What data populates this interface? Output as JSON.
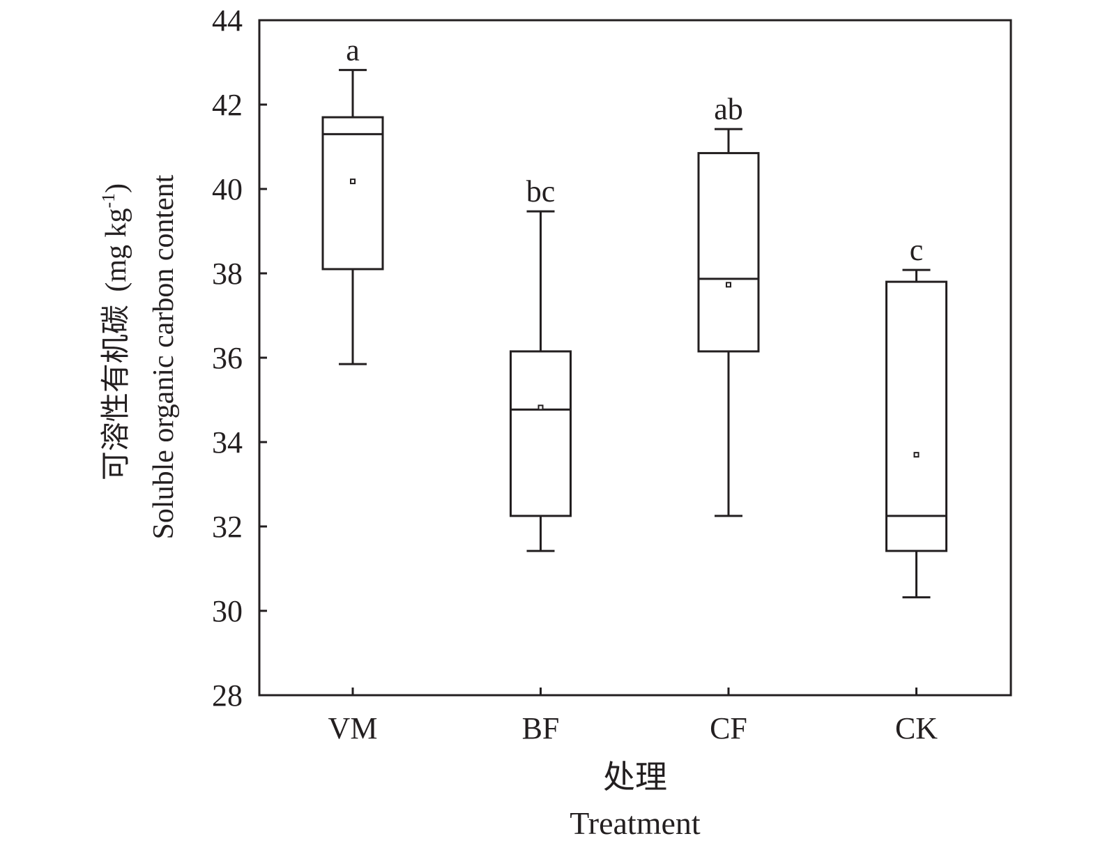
{
  "chart_data": {
    "type": "box",
    "ylabel_cn": "可溶性有机碳",
    "ylabel_en": "Soluble organic carbon content",
    "ylabel_unit": "(mg kg",
    "ylabel_unit_sup": "-1",
    "ylabel_unit_close": ")",
    "xlabel_cn": "处理",
    "xlabel_en": "Treatment",
    "ylim": [
      28,
      44
    ],
    "yticks": [
      28,
      30,
      32,
      34,
      36,
      38,
      40,
      42,
      44
    ],
    "ytick_labels": [
      "28",
      "30",
      "32",
      "34",
      "36",
      "38",
      "40",
      "42",
      "44"
    ],
    "grid": false,
    "categories": [
      "VM",
      "BF",
      "CF",
      "CK"
    ],
    "boxes": [
      {
        "label": "VM",
        "whisker_low": 35.85,
        "q1": 38.1,
        "median": 41.3,
        "q3": 41.7,
        "whisker_high": 42.82,
        "mean": 40.18,
        "letter": "a"
      },
      {
        "label": "BF",
        "whisker_low": 31.42,
        "q1": 32.25,
        "median": 34.77,
        "q3": 36.15,
        "whisker_high": 39.47,
        "mean": 34.82,
        "letter": "bc"
      },
      {
        "label": "CF",
        "whisker_low": 32.25,
        "q1": 36.15,
        "median": 37.87,
        "q3": 40.85,
        "whisker_high": 41.42,
        "mean": 37.73,
        "letter": "ab"
      },
      {
        "label": "CK",
        "whisker_low": 30.32,
        "q1": 31.42,
        "median": 32.25,
        "q3": 37.8,
        "whisker_high": 38.08,
        "mean": 33.7,
        "letter": "c"
      }
    ]
  }
}
